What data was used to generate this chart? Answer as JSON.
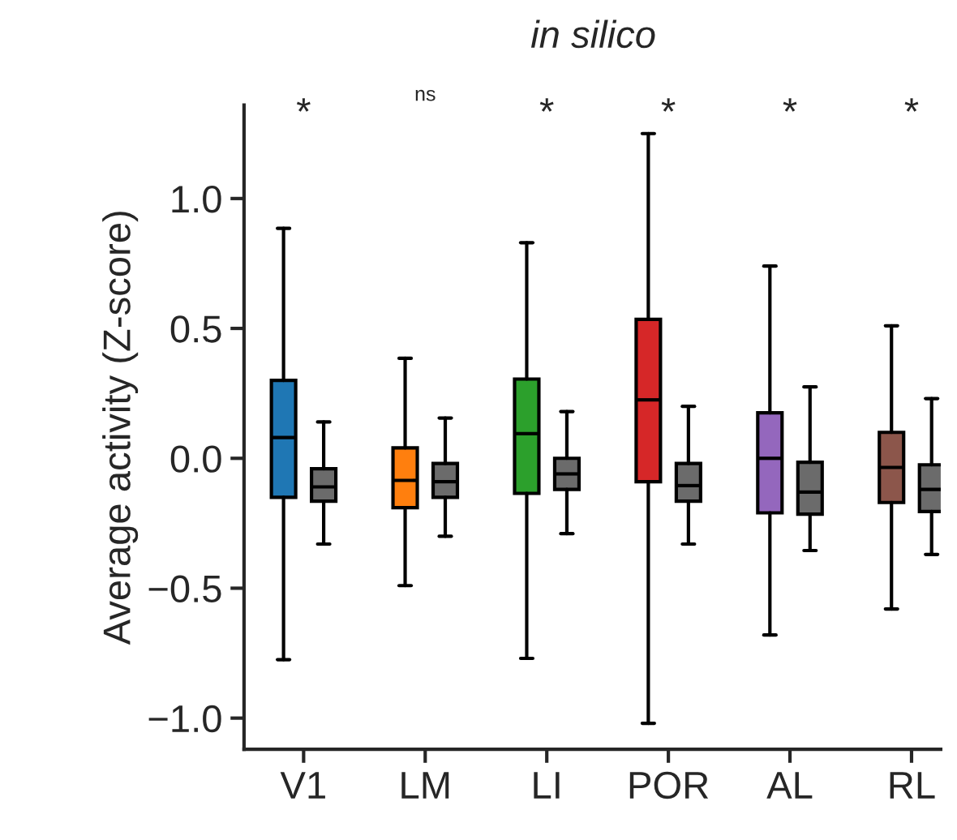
{
  "chart_data": {
    "type": "box",
    "title": "in silico",
    "ylabel": "Average activity (Z-score)",
    "categories": [
      "V1",
      "LM",
      "LI",
      "POR",
      "AL",
      "RL"
    ],
    "series": [
      {
        "colors": [
          "#1f77b4",
          "#ff7f0e",
          "#2ca02c",
          "#d62728",
          "#9467bd",
          "#8c564b"
        ],
        "boxes": [
          {
            "low": -0.775,
            "q1": -0.15,
            "median": 0.08,
            "q3": 0.3,
            "high": 0.885
          },
          {
            "low": -0.49,
            "q1": -0.19,
            "median": -0.085,
            "q3": 0.04,
            "high": 0.385
          },
          {
            "low": -0.77,
            "q1": -0.135,
            "median": 0.095,
            "q3": 0.305,
            "high": 0.83
          },
          {
            "low": -1.02,
            "q1": -0.09,
            "median": 0.225,
            "q3": 0.535,
            "high": 1.25
          },
          {
            "low": -0.68,
            "q1": -0.21,
            "median": 0.0,
            "q3": 0.175,
            "high": 0.74
          },
          {
            "low": -0.58,
            "q1": -0.17,
            "median": -0.035,
            "q3": 0.1,
            "high": 0.51
          }
        ]
      },
      {
        "color": "#6b6b6b",
        "boxes": [
          {
            "low": -0.33,
            "q1": -0.165,
            "median": -0.11,
            "q3": -0.04,
            "high": 0.14
          },
          {
            "low": -0.3,
            "q1": -0.15,
            "median": -0.09,
            "q3": -0.02,
            "high": 0.155
          },
          {
            "low": -0.29,
            "q1": -0.12,
            "median": -0.06,
            "q3": 0.0,
            "high": 0.18
          },
          {
            "low": -0.33,
            "q1": -0.165,
            "median": -0.105,
            "q3": -0.02,
            "high": 0.2
          },
          {
            "low": -0.355,
            "q1": -0.215,
            "median": -0.13,
            "q3": -0.015,
            "high": 0.275
          },
          {
            "low": -0.37,
            "q1": -0.205,
            "median": -0.12,
            "q3": -0.025,
            "high": 0.23
          }
        ]
      }
    ],
    "annotations": [
      "*",
      "ns",
      "*",
      "*",
      "*",
      "*"
    ],
    "ylim": [
      -1.12,
      1.36
    ],
    "yticks": [
      {
        "value": -1.0,
        "label": "−1.0"
      },
      {
        "value": -0.5,
        "label": "−0.5"
      },
      {
        "value": 0.0,
        "label": "0.0"
      },
      {
        "value": 0.5,
        "label": "0.5"
      },
      {
        "value": 1.0,
        "label": "1.0"
      }
    ],
    "grid": false,
    "legend": false
  }
}
